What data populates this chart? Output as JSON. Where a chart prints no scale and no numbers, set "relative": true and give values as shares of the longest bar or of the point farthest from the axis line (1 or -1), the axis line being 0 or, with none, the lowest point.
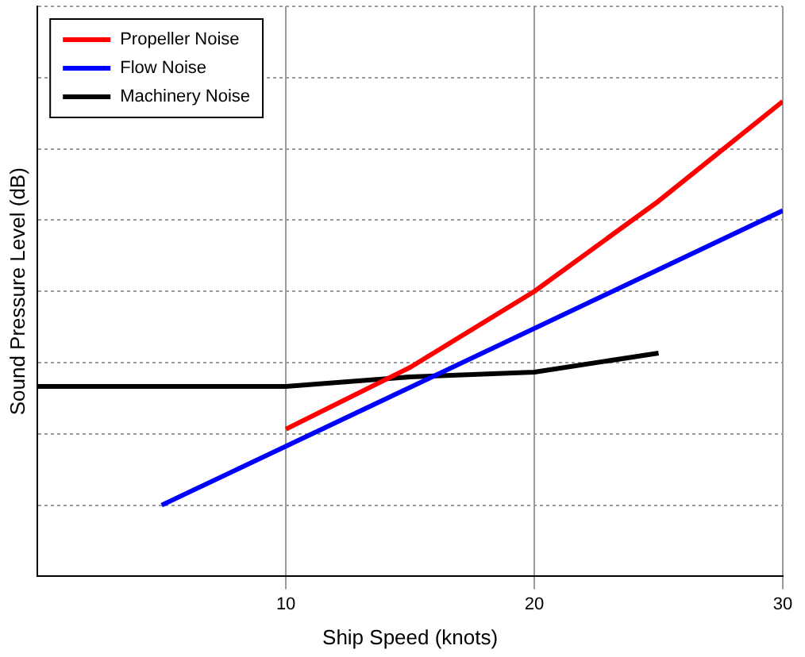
{
  "chart_data": {
    "type": "line",
    "xlabel": "Ship Speed (knots)",
    "ylabel": "Sound Pressure Level (dB)",
    "relative": true,
    "xlim": [
      0,
      30
    ],
    "xticks": [
      10,
      20,
      30
    ],
    "grid": true,
    "legend": "top left",
    "marker": "none",
    "line_style": "solid",
    "series": [
      {
        "name": "Propeller Noise",
        "color": "#ff0000",
        "x": [
          10,
          15,
          20,
          25,
          30
        ],
        "values": [
          0.31,
          0.44,
          0.6,
          0.79,
          1
        ]
      },
      {
        "name": "Flow Noise",
        "color": "#0000ff",
        "x": [
          5,
          30
        ],
        "values": [
          0.15,
          0.77
        ]
      },
      {
        "name": "Machinery Noise",
        "color": "#000000",
        "x": [
          0,
          5,
          10,
          15,
          20,
          25
        ],
        "values": [
          0.4,
          0.4,
          0.4,
          0.42,
          0.43,
          0.47
        ]
      }
    ]
  }
}
